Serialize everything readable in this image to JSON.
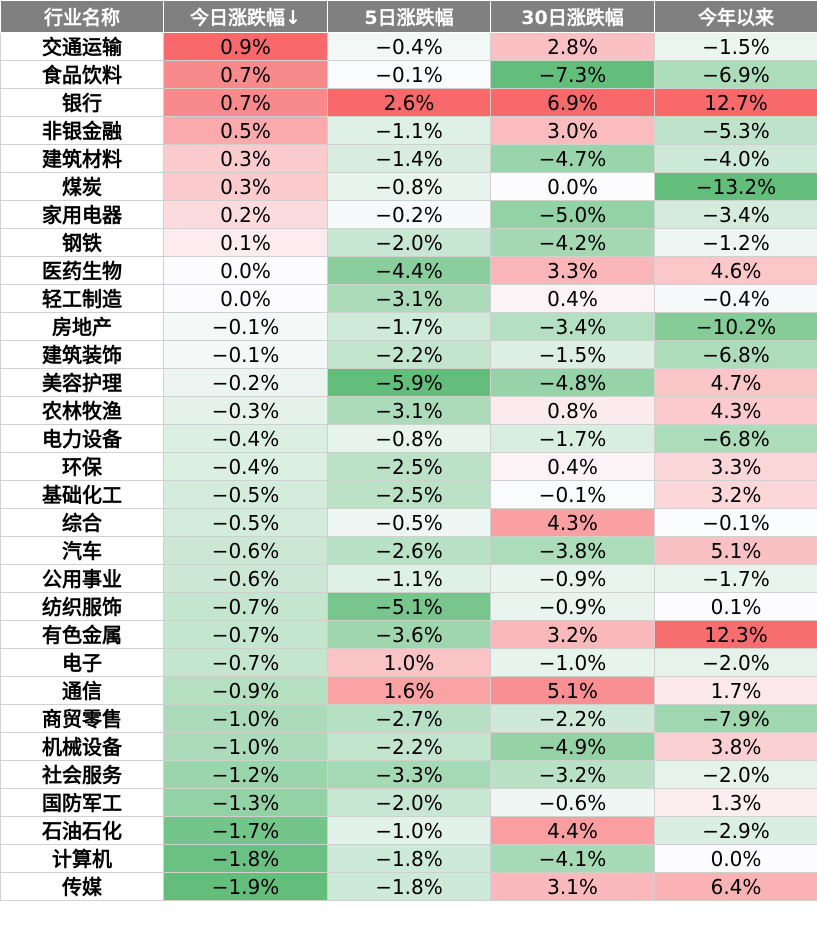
{
  "table": {
    "headers": [
      "行业名称",
      "今日涨跌幅↓",
      "5日涨跌幅",
      "30日涨跌幅",
      "今年以来"
    ],
    "rows": [
      [
        "交通运输",
        "0.9%",
        "−0.4%",
        "2.8%",
        "−1.5%"
      ],
      [
        "食品饮料",
        "0.7%",
        "−0.1%",
        "−7.3%",
        "−6.9%"
      ],
      [
        "银行",
        "0.7%",
        "2.6%",
        "6.9%",
        "12.7%"
      ],
      [
        "非银金融",
        "0.5%",
        "−1.1%",
        "3.0%",
        "−5.3%"
      ],
      [
        "建筑材料",
        "0.3%",
        "−1.4%",
        "−4.7%",
        "−4.0%"
      ],
      [
        "煤炭",
        "0.3%",
        "−0.8%",
        "0.0%",
        "−13.2%"
      ],
      [
        "家用电器",
        "0.2%",
        "−0.2%",
        "−5.0%",
        "−3.4%"
      ],
      [
        "钢铁",
        "0.1%",
        "−2.0%",
        "−4.2%",
        "−1.2%"
      ],
      [
        "医药生物",
        "0.0%",
        "−4.4%",
        "3.3%",
        "4.6%"
      ],
      [
        "轻工制造",
        "0.0%",
        "−3.1%",
        "0.4%",
        "−0.4%"
      ],
      [
        "房地产",
        "−0.1%",
        "−1.7%",
        "−3.4%",
        "−10.2%"
      ],
      [
        "建筑装饰",
        "−0.1%",
        "−2.2%",
        "−1.5%",
        "−6.8%"
      ],
      [
        "美容护理",
        "−0.2%",
        "−5.9%",
        "−4.8%",
        "4.7%"
      ],
      [
        "农林牧渔",
        "−0.3%",
        "−3.1%",
        "0.8%",
        "4.3%"
      ],
      [
        "电力设备",
        "−0.4%",
        "−0.8%",
        "−1.7%",
        "−6.8%"
      ],
      [
        "环保",
        "−0.4%",
        "−2.5%",
        "0.4%",
        "3.3%"
      ],
      [
        "基础化工",
        "−0.5%",
        "−2.5%",
        "−0.1%",
        "3.2%"
      ],
      [
        "综合",
        "−0.5%",
        "−0.5%",
        "4.3%",
        "−0.1%"
      ],
      [
        "汽车",
        "−0.6%",
        "−2.6%",
        "−3.8%",
        "5.1%"
      ],
      [
        "公用事业",
        "−0.6%",
        "−1.1%",
        "−0.9%",
        "−1.7%"
      ],
      [
        "纺织服饰",
        "−0.7%",
        "−5.1%",
        "−0.9%",
        "0.1%"
      ],
      [
        "有色金属",
        "−0.7%",
        "−3.6%",
        "3.2%",
        "12.3%"
      ],
      [
        "电子",
        "−0.7%",
        "1.0%",
        "−1.0%",
        "−2.0%"
      ],
      [
        "通信",
        "−0.9%",
        "1.6%",
        "5.1%",
        "1.7%"
      ],
      [
        "商贸零售",
        "−1.0%",
        "−2.7%",
        "−2.2%",
        "−7.9%"
      ],
      [
        "机械设备",
        "−1.0%",
        "−2.2%",
        "−4.9%",
        "3.8%"
      ],
      [
        "社会服务",
        "−1.2%",
        "−3.3%",
        "−3.2%",
        "−2.0%"
      ],
      [
        "国防军工",
        "−1.3%",
        "−2.0%",
        "−0.6%",
        "1.3%"
      ],
      [
        "石油石化",
        "−1.7%",
        "−1.0%",
        "4.4%",
        "−2.9%"
      ],
      [
        "计算机",
        "−1.8%",
        "−1.8%",
        "−4.1%",
        "0.0%"
      ],
      [
        "传媒",
        "−1.9%",
        "−1.8%",
        "3.1%",
        "6.4%"
      ]
    ]
  },
  "colors": {
    "header_bg": "#808080",
    "header_text": "#ffffff",
    "positive_max": "#f8696b",
    "negative_max": "#63be7b",
    "neutral": "#fcfcff"
  }
}
